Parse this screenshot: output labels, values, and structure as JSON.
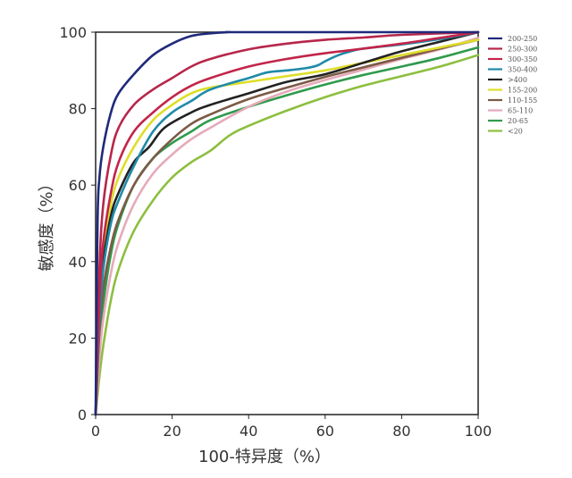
{
  "chart_data": {
    "type": "line",
    "xlabel": "100-特异度（%）",
    "ylabel": "敏感度（%）",
    "xlim": [
      0,
      100
    ],
    "ylim": [
      0,
      100
    ],
    "x_ticks": [
      "0",
      "20",
      "40",
      "60",
      "80",
      "100"
    ],
    "y_ticks": [
      "0",
      "20",
      "40",
      "60",
      "80",
      "100"
    ],
    "grid": false,
    "legend_position": "right",
    "series": [
      {
        "name": "200-250",
        "color": "#1f2a7a",
        "x": [
          0,
          0.5,
          1,
          2,
          4,
          6,
          10,
          15,
          20,
          25,
          30,
          35,
          40,
          100
        ],
        "y": [
          0,
          50,
          62,
          70,
          79,
          84,
          89,
          94,
          97,
          99,
          99.7,
          100,
          100,
          100
        ]
      },
      {
        "name": "250-300",
        "color": "#b7264b",
        "x": [
          0,
          1,
          2,
          4,
          6,
          10,
          15,
          20,
          25,
          30,
          40,
          50,
          60,
          70,
          80,
          100
        ],
        "y": [
          0,
          38,
          55,
          68,
          75,
          81,
          85,
          88,
          91,
          93,
          95.5,
          97,
          98,
          98.6,
          99.3,
          100
        ]
      },
      {
        "name": "300-350",
        "color": "#c2254a",
        "x": [
          0,
          1,
          2,
          4,
          6,
          10,
          15,
          20,
          25,
          30,
          40,
          50,
          60,
          70,
          80,
          90,
          100
        ],
        "y": [
          0,
          30,
          45,
          58,
          66,
          74,
          79,
          83,
          86,
          88,
          91,
          93,
          94.5,
          95.7,
          97,
          98.5,
          100
        ]
      },
      {
        "name": "350-400",
        "color": "#1f8aa8",
        "x": [
          0,
          1,
          2,
          4,
          6,
          10,
          15,
          20,
          25,
          30,
          40,
          45,
          50,
          55,
          58,
          60,
          63,
          66,
          70,
          80,
          90,
          100
        ],
        "y": [
          0,
          25,
          38,
          50,
          56,
          65,
          74,
          79,
          82,
          85,
          88,
          89.5,
          90,
          90.6,
          91.3,
          92.4,
          93.8,
          94.8,
          95.7,
          96.8,
          98.2,
          100
        ]
      },
      {
        "name": ">400",
        "color": "#222222",
        "x": [
          0,
          1,
          2,
          4,
          6,
          10,
          14,
          18,
          25,
          30,
          40,
          50,
          60,
          70,
          80,
          90,
          100
        ],
        "y": [
          0,
          28,
          40,
          52,
          58,
          66,
          70,
          75,
          79,
          81,
          84,
          87,
          89,
          92,
          95,
          97.5,
          100
        ]
      },
      {
        "name": "155-200",
        "color": "#dede2a",
        "x": [
          0,
          1,
          2,
          4,
          6,
          10,
          15,
          20,
          25,
          30,
          40,
          50,
          60,
          70,
          80,
          90,
          100
        ],
        "y": [
          0,
          30,
          42,
          55,
          62,
          70,
          77,
          81,
          84,
          85.5,
          87,
          88.5,
          90,
          92,
          94,
          96,
          98
        ]
      },
      {
        "name": "110-155",
        "color": "#7c5a46",
        "x": [
          0,
          1,
          2,
          4,
          6,
          10,
          15,
          20,
          25,
          30,
          40,
          50,
          60,
          70,
          80,
          90,
          100
        ],
        "y": [
          0,
          22,
          33,
          44,
          51,
          60,
          67,
          72,
          76,
          78.5,
          82.5,
          85.5,
          88.3,
          90.8,
          93.3,
          95.7,
          98
        ]
      },
      {
        "name": "65-110",
        "color": "#e6aab9",
        "x": [
          0,
          1,
          2,
          4,
          6,
          10,
          15,
          20,
          25,
          30,
          40,
          50,
          60,
          70,
          80,
          90,
          100
        ],
        "y": [
          0,
          15,
          25,
          37,
          45,
          55,
          63,
          68,
          72,
          75,
          80.5,
          84.5,
          87.5,
          90.2,
          93,
          95.5,
          98.5
        ]
      },
      {
        "name": "20-65",
        "color": "#2f9a4c",
        "x": [
          0,
          1,
          2,
          4,
          6,
          10,
          15,
          20,
          25,
          30,
          40,
          50,
          60,
          70,
          80,
          90,
          100
        ],
        "y": [
          0,
          18,
          29,
          42,
          50,
          60,
          67,
          71,
          74,
          77,
          80.5,
          83.5,
          86.3,
          88.8,
          91,
          93.3,
          96
        ]
      },
      {
        "name": "<20",
        "color": "#8cbf3f",
        "x": [
          0,
          1,
          2,
          4,
          6,
          10,
          15,
          20,
          25,
          30,
          35,
          40,
          50,
          60,
          70,
          80,
          90,
          100
        ],
        "y": [
          0,
          10,
          18,
          30,
          38,
          48,
          56,
          62,
          66,
          69,
          73,
          75.5,
          79.5,
          83,
          86,
          88.5,
          91,
          94
        ]
      }
    ]
  }
}
